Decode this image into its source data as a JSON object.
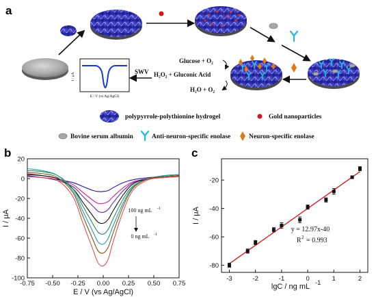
{
  "panels": {
    "a": "a",
    "b": "b",
    "c": "c"
  },
  "scheme": {
    "reaction_1": "Glucose + O₂",
    "reaction_2": "H₂O₂ + Gluconic Acid",
    "reaction_3": "H₂O + O₂",
    "swv_label": "SWV",
    "inset_ylabel": "I / μA",
    "inset_xlabel": "E / V (vs Ag/AgCl)",
    "legend": [
      {
        "label": "polypyrrole-polythionine hydrogel",
        "icon": "hydrogel-icon"
      },
      {
        "label": "Gold nanoparticles",
        "icon": "gold-nanoparticle-icon"
      },
      {
        "label": "Bovine serum albumin",
        "icon": "bsa-icon"
      },
      {
        "label": "Anti-neuron-specific enolase",
        "icon": "antibody-icon"
      },
      {
        "label": "Neuron-specific enolase",
        "icon": "nse-icon"
      }
    ],
    "colors": {
      "hydrogel": "#3a3ac8",
      "gold": "#d01818",
      "antibody": "#22b8e0",
      "nse": "#e07a18",
      "electrode": "#9a9a9a"
    }
  },
  "chart_data": [
    {
      "type": "line",
      "panel": "b",
      "xlabel": "E / V (vs Ag/AgCl)",
      "ylabel": "I / μA",
      "xlim": [
        -0.75,
        0.75
      ],
      "ylim": [
        -100,
        20
      ],
      "xticks": [
        -0.75,
        -0.5,
        -0.25,
        0.0,
        0.25,
        0.5,
        0.75
      ],
      "xtick_labels": [
        "-0.75",
        "-0.50",
        "-0.25",
        "0.00",
        "0.25",
        "0.50",
        "0.75"
      ],
      "yticks": [
        -100,
        -80,
        -60,
        -40,
        -20,
        0,
        20
      ],
      "ytick_labels": [
        "-100",
        "-80",
        "-60",
        "-40",
        "-20",
        "0",
        "20"
      ],
      "annotation_top": "100 ng mL",
      "annotation_top_sup": "-1",
      "annotation_bottom": "0 ng mL",
      "annotation_bottom_sup": "-1",
      "x": [
        -0.75,
        -0.6,
        -0.45,
        -0.3,
        -0.2,
        -0.1,
        -0.05,
        0.0,
        0.05,
        0.1,
        0.2,
        0.3,
        0.45,
        0.6,
        0.75
      ],
      "series": [
        {
          "color": "#1a1ab0",
          "values": [
            3,
            1,
            -1,
            -4,
            -8,
            -12,
            -13,
            -13,
            -12,
            -9,
            -4,
            -1,
            1,
            2,
            3
          ]
        },
        {
          "color": "#e01a8a",
          "values": [
            5,
            3,
            0,
            -6,
            -14,
            -22,
            -25,
            -25,
            -23,
            -18,
            -9,
            -3,
            0,
            2,
            3
          ]
        },
        {
          "color": "#6a2a9a",
          "values": [
            2,
            1,
            -2,
            -8,
            -18,
            -28,
            -33,
            -34,
            -31,
            -24,
            -12,
            -4,
            0,
            1,
            2
          ]
        },
        {
          "color": "#111111",
          "values": [
            4,
            3,
            0,
            -10,
            -24,
            -38,
            -44,
            -45,
            -41,
            -32,
            -16,
            -5,
            0,
            2,
            3
          ]
        },
        {
          "color": "#2a8a5a",
          "values": [
            8,
            7,
            3,
            -10,
            -28,
            -46,
            -54,
            -56,
            -51,
            -40,
            -20,
            -7,
            0,
            3,
            4
          ]
        },
        {
          "color": "#1aa0b0",
          "values": [
            10,
            8,
            3,
            -12,
            -33,
            -54,
            -64,
            -66,
            -60,
            -47,
            -24,
            -8,
            0,
            3,
            4
          ]
        },
        {
          "color": "#7a5a10",
          "values": [
            6,
            5,
            1,
            -14,
            -38,
            -62,
            -73,
            -75,
            -69,
            -54,
            -27,
            -9,
            0,
            2,
            3
          ]
        },
        {
          "color": "#e05050",
          "values": [
            2,
            1,
            -2,
            -18,
            -45,
            -72,
            -85,
            -88,
            -81,
            -63,
            -32,
            -11,
            -1,
            1,
            2
          ]
        }
      ]
    },
    {
      "type": "scatter",
      "panel": "c",
      "xlabel": "lgC / ng mL",
      "xlabel_sup": "-1",
      "ylabel": "I / μA",
      "xlim": [
        -3.3,
        2.3
      ],
      "ylim": [
        -85,
        -5
      ],
      "xticks": [
        -3,
        -2,
        -1,
        0,
        1,
        2
      ],
      "xtick_labels": [
        "-3",
        "-2",
        "-1",
        "0",
        "1",
        "2"
      ],
      "yticks": [
        -80,
        -60,
        -40,
        -20
      ],
      "ytick_labels": [
        "-80",
        "-60",
        "-40",
        "-20"
      ],
      "equation": "y = 12.97x-40",
      "r2_label": "R",
      "r2_sup": "2",
      "r2_value": "= 0.993",
      "points": [
        {
          "x": -3.0,
          "y": -80,
          "err": 1.5
        },
        {
          "x": -2.3,
          "y": -70,
          "err": 1.5
        },
        {
          "x": -2.0,
          "y": -64,
          "err": 1.5
        },
        {
          "x": -1.3,
          "y": -55,
          "err": 1.5
        },
        {
          "x": -1.0,
          "y": -52,
          "err": 2.0
        },
        {
          "x": -0.3,
          "y": -48,
          "err": 2.0
        },
        {
          "x": 0.0,
          "y": -39,
          "err": 1.5
        },
        {
          "x": 0.7,
          "y": -34,
          "err": 1.5
        },
        {
          "x": 1.0,
          "y": -28,
          "err": 2.0
        },
        {
          "x": 1.7,
          "y": -18,
          "err": 1.0
        },
        {
          "x": 2.0,
          "y": -12,
          "err": 1.5
        }
      ],
      "fit": {
        "slope": 12.97,
        "intercept": -40,
        "x_range": [
          -3.0,
          2.0
        ]
      },
      "marker_color": "#111111",
      "fit_color": "#d02020"
    }
  ]
}
